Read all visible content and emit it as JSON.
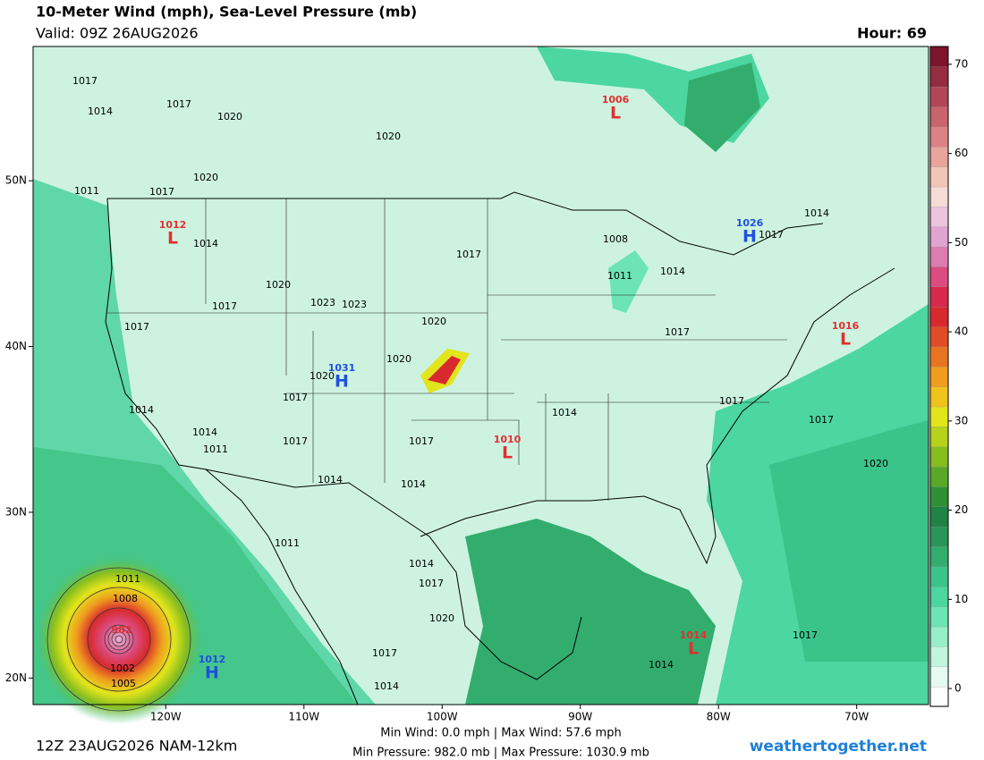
{
  "header": {
    "title": "10-Meter Wind (mph), Sea-Level Pressure (mb)",
    "valid": "Valid: 09Z 26AUG2026",
    "hour": "Hour: 69"
  },
  "map": {
    "xlim": [
      -129.6,
      -64.8
    ],
    "ylim": [
      18.4,
      58.1
    ],
    "xticks": [
      {
        "value": -120,
        "label": "120W"
      },
      {
        "value": -110,
        "label": "110W"
      },
      {
        "value": -100,
        "label": "100W"
      },
      {
        "value": -90,
        "label": "90W"
      },
      {
        "value": -80,
        "label": "80W"
      },
      {
        "value": -70,
        "label": "70W"
      }
    ],
    "yticks": [
      {
        "value": 20,
        "label": "20N"
      },
      {
        "value": 30,
        "label": "30N"
      },
      {
        "value": 40,
        "label": "40N"
      },
      {
        "value": 50,
        "label": "50N"
      }
    ],
    "isobar_labels": [
      1017,
      1014,
      1017,
      1020,
      1020,
      1020,
      1017,
      1011,
      1014,
      1017,
      1020,
      1017,
      1023,
      1023,
      1017,
      1020,
      1020,
      1020,
      1017,
      1014,
      1014,
      1011,
      1017,
      1017,
      1014,
      1014,
      1014,
      1017,
      1017,
      1017,
      1020,
      1014,
      1017,
      1008,
      1011,
      1014,
      1011,
      1014,
      1017,
      1020,
      1017,
      1014,
      1014,
      1017,
      1011,
      1008,
      1002,
      1005
    ],
    "centers": [
      {
        "letter": "L",
        "value": 1006
      },
      {
        "letter": "L",
        "value": 1012
      },
      {
        "letter": "H",
        "value": 1026
      },
      {
        "letter": "L",
        "value": 1016
      },
      {
        "letter": "H",
        "value": 1031
      },
      {
        "letter": "L",
        "value": 1010
      },
      {
        "letter": "L",
        "value": 1014
      },
      {
        "letter": "H",
        "value": 1012
      }
    ],
    "storm_center": 982
  },
  "colorbar": {
    "lim": [
      -2,
      72
    ],
    "ticks": [
      0,
      10,
      20,
      30,
      40,
      50,
      60,
      70
    ],
    "colors": [
      "#ffffff",
      "#e4fbf0",
      "#c2f5de",
      "#97eecb",
      "#6ce4b5",
      "#4cd6a0",
      "#3bc48a",
      "#32ad6e",
      "#299659",
      "#218246",
      "#2f8f35",
      "#5aa828",
      "#86bd1f",
      "#b6d21a",
      "#e2e51b",
      "#f0c21c",
      "#ef9c1f",
      "#e87422",
      "#df4c25",
      "#d82a2e",
      "#d7284e",
      "#dc4c80",
      "#dd7cb0",
      "#e0a4d0",
      "#ecc4dc",
      "#f6dcd4",
      "#f2c6b6",
      "#e9a49c",
      "#dc8284",
      "#c8646c",
      "#b04656",
      "#962c40",
      "#7c142a"
    ]
  },
  "footer": {
    "run": "12Z 23AUG2026 NAM-12km",
    "wind": "Min Wind:   0.0 mph | Max Wind: 57.6 mph",
    "pressure": "Min Pressure: 982.0 mb | Max Pressure: 1030.9 mb",
    "site": "weathertogether.net"
  }
}
